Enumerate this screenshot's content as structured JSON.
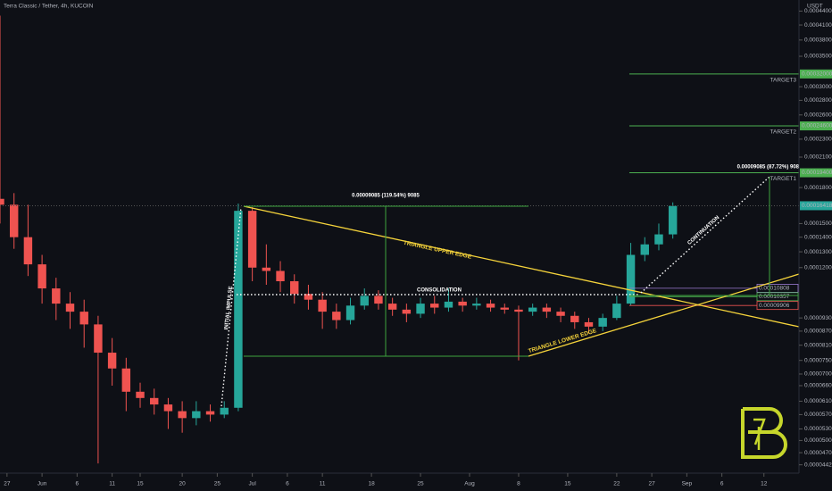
{
  "chart_data": {
    "type": "candlestick",
    "title": "Terra Classic / Tether, 4h, KUCOIN",
    "y_axis_label": "USDT",
    "log_scale": true,
    "up_color": "#26a69a",
    "down_color": "#ef5350",
    "x": [
      -6,
      -4,
      -2,
      0,
      2,
      4,
      6,
      8,
      10,
      12,
      14,
      16,
      18,
      20,
      22,
      24,
      26,
      28,
      30,
      32,
      34,
      36,
      38,
      40,
      42,
      44,
      46,
      48,
      50,
      52,
      54,
      56,
      58,
      60,
      62,
      64,
      66,
      68,
      70,
      72,
      74,
      76,
      78,
      80,
      82,
      84,
      86,
      88,
      90
    ],
    "open": [
      0.00017,
      0.000165,
      0.00014,
      0.000122,
      0.000108,
      0.0001,
      9.6e-05,
      9e-05,
      7.8e-05,
      7.2e-05,
      6.4e-05,
      6.2e-05,
      6e-05,
      5.8e-05,
      5.6e-05,
      5.8e-05,
      5.7e-05,
      5.9e-05,
      0.00016,
      0.00012,
      0.000118,
      0.000112,
      0.000105,
      0.000102,
      9.6e-05,
      9.2e-05,
      9.9e-05,
      0.000104,
      0.0001,
      9.7e-05,
      9.5e-05,
      0.0001,
      9.8e-05,
      0.000101,
      9.9e-05,
      0.0001,
      9.8e-05,
      9.7e-05,
      9.6e-05,
      9.8e-05,
      9.6e-05,
      9.4e-05,
      9.1e-05,
      8.9e-05,
      9.3e-05,
      0.0001,
      0.000128,
      0.000135,
      0.000142
    ],
    "high": [
      0.00043,
      0.000175,
      0.000165,
      0.000128,
      0.000114,
      0.000106,
      0.000102,
      9.4e-05,
      8.4e-05,
      7.6e-05,
      6.7e-05,
      6.5e-05,
      6.2e-05,
      6.1e-05,
      6.1e-05,
      6e-05,
      6.1e-05,
      0.000166,
      0.000163,
      0.000135,
      0.000124,
      0.000116,
      0.00011,
      0.000106,
      0.0001,
      0.000103,
      0.000108,
      0.000107,
      0.000103,
      0.0001,
      0.000103,
      0.000104,
      0.000108,
      0.000103,
      0.000103,
      0.000102,
      0.0001,
      9.9e-05,
      0.0001,
      0.0001,
      9.8e-05,
      9.6e-05,
      9.3e-05,
      9.5e-05,
      0.000104,
      0.000136,
      0.00014,
      0.00015,
      0.000167
    ],
    "low": [
      0.00015,
      0.000132,
      0.000115,
      0.0001,
      9.2e-05,
      8.8e-05,
      8e-05,
      4.45e-05,
      6.6e-05,
      5.8e-05,
      5.9e-05,
      5.7e-05,
      5.3e-05,
      5.2e-05,
      5.4e-05,
      5.5e-05,
      5.6e-05,
      5.8e-05,
      0.000112,
      0.00011,
      0.000106,
      0.0001,
      9.7e-05,
      8.8e-05,
      8.8e-05,
      9e-05,
      9.7e-05,
      9.7e-05,
      9.4e-05,
      9.1e-05,
      9.3e-05,
      9.5e-05,
      9.6e-05,
      9.6e-05,
      9.7e-05,
      9.6e-05,
      9.5e-05,
      7.5e-05,
      9.4e-05,
      9.3e-05,
      9.1e-05,
      8.8e-05,
      8.6e-05,
      8.7e-05,
      9.2e-05,
      9.9e-05,
      0.000124,
      0.000131,
      0.000139
    ],
    "close": [
      0.000165,
      0.00014,
      0.000122,
      0.000108,
      0.0001,
      9.6e-05,
      9e-05,
      7.8e-05,
      7.2e-05,
      6.4e-05,
      6.2e-05,
      6e-05,
      5.8e-05,
      5.6e-05,
      5.8e-05,
      5.7e-05,
      5.9e-05,
      0.00016,
      0.00012,
      0.000118,
      0.000112,
      0.000105,
      0.000102,
      9.6e-05,
      9.2e-05,
      9.9e-05,
      0.000104,
      0.0001,
      9.7e-05,
      9.5e-05,
      0.0001,
      9.8e-05,
      0.000101,
      9.9e-05,
      0.0001,
      9.8e-05,
      9.7e-05,
      9.6e-05,
      9.8e-05,
      9.6e-05,
      9.4e-05,
      9.1e-05,
      8.9e-05,
      9.3e-05,
      0.0001,
      0.000128,
      0.000135,
      0.000142,
      0.000164
    ],
    "xlim": [
      -6,
      108
    ],
    "ylim": [
      4.05e-05,
      0.000455
    ],
    "xticks": [
      {
        "value": -5,
        "label": "27"
      },
      {
        "value": 0,
        "label": "Jun"
      },
      {
        "value": 5,
        "label": "6"
      },
      {
        "value": 10,
        "label": "11"
      },
      {
        "value": 14,
        "label": "15"
      },
      {
        "value": 20,
        "label": "20"
      },
      {
        "value": 25,
        "label": "25"
      },
      {
        "value": 30,
        "label": "Jul"
      },
      {
        "value": 35,
        "label": "6"
      },
      {
        "value": 40,
        "label": "11"
      },
      {
        "value": 47,
        "label": "18"
      },
      {
        "value": 54,
        "label": "25"
      },
      {
        "value": 61,
        "label": "Aug"
      },
      {
        "value": 68,
        "label": "8"
      },
      {
        "value": 75,
        "label": "15"
      },
      {
        "value": 82,
        "label": "22"
      },
      {
        "value": 87,
        "label": "27"
      },
      {
        "value": 92,
        "label": "Sep"
      },
      {
        "value": 97,
        "label": "6"
      },
      {
        "value": 103,
        "label": "12"
      }
    ],
    "yticks": [
      {
        "value": 0.00044,
        "label": "0.00044000"
      },
      {
        "value": 0.00041,
        "label": "0.00041000"
      },
      {
        "value": 0.00038,
        "label": "0.00038000"
      },
      {
        "value": 0.00035,
        "label": "0.00035000"
      },
      {
        "value": 0.0003,
        "label": "0.00030000"
      },
      {
        "value": 0.00028,
        "label": "0.00028000"
      },
      {
        "value": 0.00026,
        "label": "0.00026000"
      },
      {
        "value": 0.00023,
        "label": "0.00023000"
      },
      {
        "value": 0.00021,
        "label": "0.00021000"
      },
      {
        "value": 0.00018,
        "label": "0.00018000"
      },
      {
        "value": 0.00015,
        "label": "0.00015000"
      },
      {
        "value": 0.00014,
        "label": "0.00014000"
      },
      {
        "value": 0.00013,
        "label": "0.00013000"
      },
      {
        "value": 0.00012,
        "label": "0.00012000"
      },
      {
        "value": 9.3e-05,
        "label": "0.00009300"
      },
      {
        "value": 8.7e-05,
        "label": "0.00008700"
      },
      {
        "value": 8.1e-05,
        "label": "0.00008100"
      },
      {
        "value": 7.5e-05,
        "label": "0.00007500"
      },
      {
        "value": 7e-05,
        "label": "0.00007000"
      },
      {
        "value": 6.6e-05,
        "label": "0.00006600"
      },
      {
        "value": 6.1e-05,
        "label": "0.00006100"
      },
      {
        "value": 5.7e-05,
        "label": "0.00005700"
      },
      {
        "value": 5.3e-05,
        "label": "0.00005300"
      },
      {
        "value": 5e-05,
        "label": "0.00005000"
      },
      {
        "value": 4.7e-05,
        "label": "0.00004700"
      },
      {
        "value": 4.42e-05,
        "label": "0.00004420"
      }
    ],
    "targets": [
      {
        "name": "TARGET3",
        "value": 0.00032,
        "label": "0.00032000"
      },
      {
        "name": "TARGET2",
        "value": 0.000246,
        "label": "0.00024600"
      },
      {
        "name": "TARGET1",
        "value": 0.000194,
        "label": "0.00019400"
      }
    ],
    "target_color": "#4caf50",
    "last_price": {
      "value": 0.00016418,
      "label": "0.00016418"
    },
    "levels": [
      {
        "value": 0.00010808,
        "label": "0.00010808",
        "color": "#9c7bd4"
      },
      {
        "value": 0.00010357,
        "label": "0.00010357",
        "color": "#4caf50"
      },
      {
        "value": 9.906e-05,
        "label": "0.00009906",
        "color": "#ef5350"
      }
    ],
    "annotations": [
      "0.00009085 (119.54%) 9085",
      "0.00009085 (87.72%) 9085",
      "TRIANGLE UPPER EDGE",
      "TRIANGLE LOWER EDGE",
      "CONSOLIDATION",
      "INITIAL IMPULSE",
      "CONTINUATION"
    ]
  }
}
